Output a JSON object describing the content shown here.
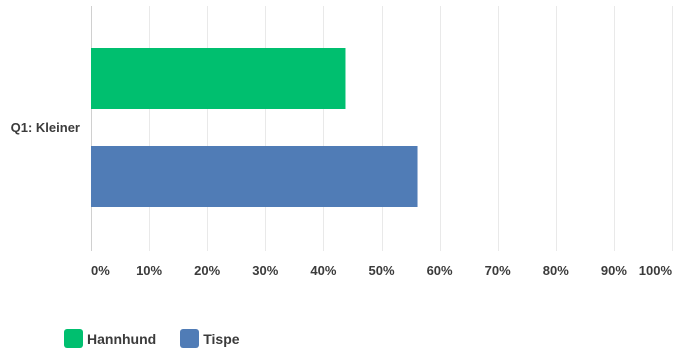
{
  "chart_data": {
    "type": "bar",
    "orientation": "horizontal",
    "categories": [
      "Q1: Kleiner"
    ],
    "series": [
      {
        "name": "Hannhund",
        "color": "#00bf6f",
        "values": [
          43.8
        ]
      },
      {
        "name": "Tispe",
        "color": "#507cb6",
        "values": [
          56.2
        ]
      }
    ],
    "xlim": [
      0,
      100
    ],
    "xticks": [
      "0%",
      "10%",
      "20%",
      "30%",
      "40%",
      "50%",
      "60%",
      "70%",
      "80%",
      "90%",
      "100%"
    ],
    "grid": "vertical",
    "legend_position": "bottom-left"
  }
}
